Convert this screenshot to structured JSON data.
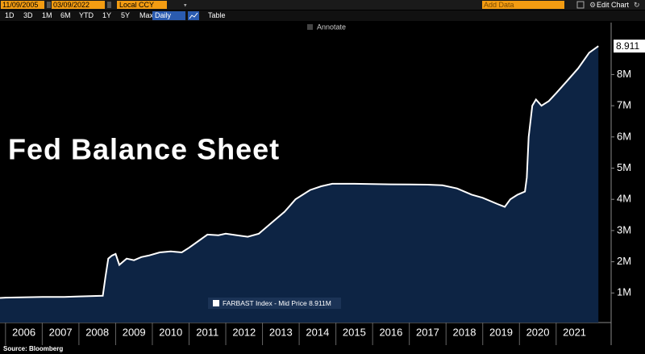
{
  "toolbar": {
    "start_date": "11/09/2005",
    "end_date": "03/09/2022",
    "currency": "Local CCY",
    "add_data": "Add Data",
    "edit_chart": "Edit Chart",
    "ranges": [
      "1D",
      "3D",
      "1M",
      "6M",
      "YTD",
      "1Y",
      "5Y",
      "Max"
    ],
    "frequency": "Daily",
    "table": "Table",
    "annotate": "Annotate"
  },
  "chart_data": {
    "type": "area",
    "title": "Fed Balance Sheet",
    "x": [
      2005.85,
      2006.0,
      2007.0,
      2007.6,
      2008.0,
      2008.65,
      2008.72,
      2008.8,
      2008.9,
      2009.0,
      2009.1,
      2009.2,
      2009.3,
      2009.5,
      2009.7,
      2009.9,
      2010.2,
      2010.5,
      2010.8,
      2011.0,
      2011.3,
      2011.5,
      2011.8,
      2012.0,
      2012.3,
      2012.6,
      2012.9,
      2013.0,
      2013.3,
      2013.6,
      2013.9,
      2014.3,
      2014.6,
      2014.9,
      2015.5,
      2016.5,
      2017.5,
      2017.9,
      2018.3,
      2018.7,
      2019.0,
      2019.4,
      2019.6,
      2019.75,
      2019.95,
      2020.15,
      2020.2,
      2020.25,
      2020.35,
      2020.45,
      2020.6,
      2020.8,
      2021.0,
      2021.3,
      2021.6,
      2021.9,
      2022.15
    ],
    "series": [
      {
        "name": "FARBAST Index - Mid Price 8.911M",
        "color": "#ffffff",
        "fill": "#0d2444",
        "values": [
          0.84,
          0.85,
          0.87,
          0.87,
          0.89,
          0.91,
          1.5,
          2.1,
          2.2,
          2.25,
          1.9,
          2.0,
          2.1,
          2.05,
          2.15,
          2.2,
          2.3,
          2.33,
          2.3,
          2.45,
          2.7,
          2.87,
          2.85,
          2.9,
          2.85,
          2.8,
          2.9,
          3.0,
          3.3,
          3.6,
          4.0,
          4.3,
          4.42,
          4.5,
          4.5,
          4.48,
          4.47,
          4.45,
          4.35,
          4.15,
          4.05,
          3.85,
          3.76,
          4.0,
          4.15,
          4.25,
          4.7,
          6.0,
          7.0,
          7.2,
          7.0,
          7.15,
          7.4,
          7.8,
          8.2,
          8.7,
          8.911
        ]
      }
    ],
    "xlim": [
      2005.85,
      2022.3
    ],
    "xticks": [
      {
        "value": 2006.5,
        "label": "2006"
      },
      {
        "value": 2007.5,
        "label": "2007"
      },
      {
        "value": 2008.5,
        "label": "2008"
      },
      {
        "value": 2009.5,
        "label": "2009"
      },
      {
        "value": 2010.5,
        "label": "2010"
      },
      {
        "value": 2011.5,
        "label": "2011"
      },
      {
        "value": 2012.5,
        "label": "2012"
      },
      {
        "value": 2013.5,
        "label": "2013"
      },
      {
        "value": 2014.5,
        "label": "2014"
      },
      {
        "value": 2015.5,
        "label": "2015"
      },
      {
        "value": 2016.5,
        "label": "2016"
      },
      {
        "value": 2017.5,
        "label": "2017"
      },
      {
        "value": 2018.5,
        "label": "2018"
      },
      {
        "value": 2019.5,
        "label": "2019"
      },
      {
        "value": 2020.5,
        "label": "2020"
      },
      {
        "value": 2021.5,
        "label": "2021"
      }
    ],
    "ylim": [
      0,
      9.6
    ],
    "yticks": [
      {
        "value": 1,
        "label": "1M"
      },
      {
        "value": 2,
        "label": "2M"
      },
      {
        "value": 3,
        "label": "3M"
      },
      {
        "value": 4,
        "label": "4M"
      },
      {
        "value": 5,
        "label": "5M"
      },
      {
        "value": 6,
        "label": "6M"
      },
      {
        "value": 7,
        "label": "7M"
      },
      {
        "value": 8,
        "label": "8M"
      }
    ],
    "grid": false,
    "legend": "bottom-center",
    "y_axis_side": "right"
  },
  "source": "Source: Bloomberg"
}
